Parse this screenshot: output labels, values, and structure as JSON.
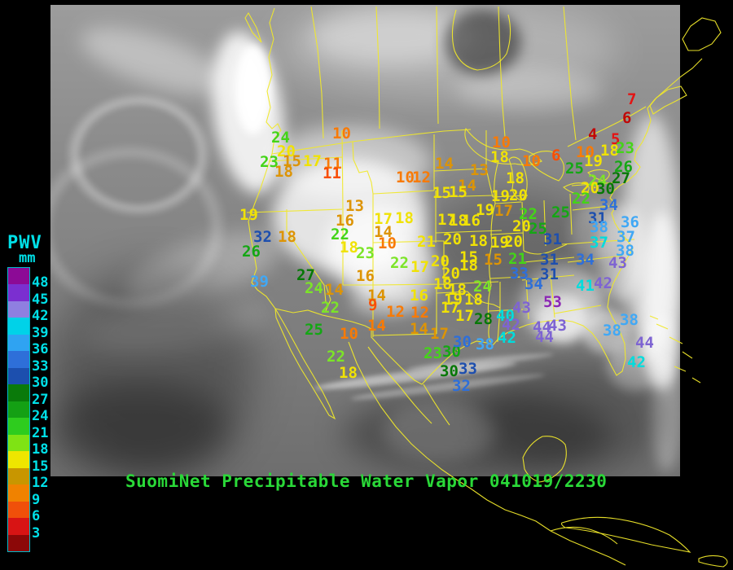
{
  "legend": {
    "title": "PWV",
    "units": "mm",
    "values": [
      "48",
      "45",
      "42",
      "39",
      "36",
      "33",
      "30",
      "27",
      "24",
      "21",
      "18",
      "15",
      "12",
      "9",
      "6",
      "3"
    ],
    "colors": [
      "#8c0a96",
      "#7b2fd0",
      "#8f7fe0",
      "#00d2e8",
      "#2fa3f2",
      "#2e6fd9",
      "#1c4fae",
      "#0a7a0a",
      "#14a014",
      "#2ecc1e",
      "#7fe314",
      "#eee600",
      "#c89600",
      "#f08200",
      "#f0500a",
      "#d81414",
      "#8c0808"
    ]
  },
  "footer": {
    "title": "SuomiNet Precipitable Water Vapor 041019/2230"
  },
  "map": {
    "outline_color": "#f0e82a",
    "background": "#000000"
  },
  "palette": {
    "YE": "#f0e205",
    "AM": "#dd9405",
    "OR": "#f87a05",
    "O2": "#f84e05",
    "RE": "#e41414",
    "R2": "#c00808",
    "G2": "#44d418",
    "G3": "#7ce428",
    "GR": "#14a714",
    "DG": "#077807",
    "DB": "#1e4fae",
    "BL": "#2e6fd9",
    "LB": "#41a8f5",
    "CY": "#00dcdc",
    "PU": "#7e64d2",
    "MA": "#8c28b4"
  },
  "stations": [
    [
      "24",
      333,
      162,
      "G2"
    ],
    [
      "10",
      408,
      157,
      "OR"
    ],
    [
      "20",
      340,
      179,
      "YE"
    ],
    [
      "23",
      319,
      192,
      "G2"
    ],
    [
      "15",
      347,
      191,
      "AM"
    ],
    [
      "17",
      372,
      191,
      "YE"
    ],
    [
      "11",
      397,
      194,
      "OR"
    ],
    [
      "11",
      396,
      206,
      "O2"
    ],
    [
      "18",
      337,
      204,
      "AM"
    ],
    [
      "19",
      294,
      257,
      "YE"
    ],
    [
      "32",
      311,
      284,
      "DB"
    ],
    [
      "18",
      341,
      284,
      "AM"
    ],
    [
      "26",
      297,
      302,
      "GR"
    ],
    [
      "39",
      307,
      339,
      "LB"
    ],
    [
      "10",
      604,
      168,
      "OR"
    ],
    [
      "18",
      602,
      186,
      "YE"
    ],
    [
      "10",
      641,
      191,
      "OR"
    ],
    [
      "6",
      677,
      184,
      "O2"
    ],
    [
      "10",
      707,
      180,
      "OR"
    ],
    [
      "18",
      737,
      178,
      "YE"
    ],
    [
      "14",
      534,
      194,
      "AM"
    ],
    [
      "13",
      577,
      202,
      "AM"
    ],
    [
      "18",
      621,
      212,
      "YE"
    ],
    [
      "14",
      562,
      221,
      "AM"
    ],
    [
      "10",
      486,
      211,
      "OR"
    ],
    [
      "12",
      506,
      211,
      "OR"
    ],
    [
      "15",
      531,
      230,
      "YE"
    ],
    [
      "15",
      551,
      229,
      "YE"
    ],
    [
      "7",
      770,
      115,
      "RE"
    ],
    [
      "6",
      764,
      138,
      "R2"
    ],
    [
      "4",
      722,
      158,
      "R2"
    ],
    [
      "5",
      750,
      164,
      "RE"
    ],
    [
      "23",
      756,
      175,
      "G2"
    ],
    [
      "19",
      717,
      191,
      "YE"
    ],
    [
      "25",
      694,
      200,
      "GR"
    ],
    [
      "26",
      754,
      198,
      "GR"
    ],
    [
      "27",
      751,
      212,
      "DG"
    ],
    [
      "24",
      722,
      215,
      "G3"
    ],
    [
      "20",
      713,
      224,
      "YE"
    ],
    [
      "30",
      732,
      225,
      "DG"
    ],
    [
      "22",
      702,
      237,
      "G2"
    ],
    [
      "34",
      736,
      245,
      "BL"
    ],
    [
      "19",
      603,
      234,
      "YE"
    ],
    [
      "20",
      625,
      233,
      "YE"
    ],
    [
      "19",
      584,
      251,
      "YE"
    ],
    [
      "17",
      607,
      252,
      "AM"
    ],
    [
      "22",
      637,
      256,
      "G2"
    ],
    [
      "25",
      677,
      254,
      "GR"
    ],
    [
      "20",
      629,
      271,
      "YE"
    ],
    [
      "25",
      649,
      274,
      "GR"
    ],
    [
      "17",
      459,
      262,
      "YE"
    ],
    [
      "18",
      485,
      261,
      "YE"
    ],
    [
      "17",
      537,
      263,
      "YE"
    ],
    [
      "18",
      551,
      264,
      "YE"
    ],
    [
      "16",
      567,
      264,
      "YE"
    ],
    [
      "16",
      412,
      264,
      "AM"
    ],
    [
      "13",
      424,
      246,
      "AM"
    ],
    [
      "21",
      512,
      290,
      "YE"
    ],
    [
      "20",
      544,
      287,
      "YE"
    ],
    [
      "18",
      576,
      289,
      "YE"
    ],
    [
      "19",
      602,
      291,
      "YE"
    ],
    [
      "20",
      619,
      290,
      "YE"
    ],
    [
      "14",
      459,
      278,
      "AM"
    ],
    [
      "10",
      464,
      292,
      "OR"
    ],
    [
      "22",
      406,
      281,
      "G2"
    ],
    [
      "18",
      417,
      297,
      "YE"
    ],
    [
      "23",
      437,
      304,
      "G3"
    ],
    [
      "31",
      722,
      261,
      "DB"
    ],
    [
      "31",
      667,
      287,
      "DB"
    ],
    [
      "31",
      663,
      312,
      "DB"
    ],
    [
      "31",
      663,
      330,
      "DB"
    ],
    [
      "36",
      762,
      266,
      "LB"
    ],
    [
      "38",
      724,
      272,
      "LB"
    ],
    [
      "37",
      724,
      291,
      "CY"
    ],
    [
      "37",
      757,
      284,
      "LB"
    ],
    [
      "38",
      756,
      301,
      "LB"
    ],
    [
      "34",
      707,
      312,
      "BL"
    ],
    [
      "43",
      747,
      316,
      "PU"
    ],
    [
      "41",
      707,
      344,
      "CY"
    ],
    [
      "42",
      729,
      341,
      "PU"
    ],
    [
      "34",
      644,
      342,
      "BL"
    ],
    [
      "53",
      667,
      364,
      "MA"
    ],
    [
      "22",
      479,
      316,
      "G3"
    ],
    [
      "17",
      504,
      321,
      "YE"
    ],
    [
      "20",
      529,
      314,
      "YE"
    ],
    [
      "15",
      564,
      309,
      "YE"
    ],
    [
      "18",
      564,
      319,
      "YE"
    ],
    [
      "15",
      594,
      312,
      "AM"
    ],
    [
      "21",
      624,
      311,
      "G2"
    ],
    [
      "33",
      626,
      329,
      "BL"
    ],
    [
      "27",
      364,
      331,
      "DG"
    ],
    [
      "24",
      374,
      347,
      "G3"
    ],
    [
      "14",
      399,
      349,
      "AM"
    ],
    [
      "16",
      437,
      332,
      "AM"
    ],
    [
      "20",
      542,
      329,
      "YE"
    ],
    [
      "18",
      532,
      342,
      "YE"
    ],
    [
      "18",
      550,
      349,
      "YE"
    ],
    [
      "24",
      581,
      345,
      "G3"
    ],
    [
      "16",
      503,
      356,
      "YE"
    ],
    [
      "19",
      545,
      361,
      "YE"
    ],
    [
      "18",
      570,
      361,
      "YE"
    ],
    [
      "14",
      451,
      356,
      "AM"
    ],
    [
      "9",
      452,
      368,
      "O2"
    ],
    [
      "17",
      541,
      371,
      "YE"
    ],
    [
      "12",
      474,
      376,
      "OR"
    ],
    [
      "12",
      504,
      377,
      "OR"
    ],
    [
      "17",
      559,
      381,
      "YE"
    ],
    [
      "28",
      582,
      385,
      "DG"
    ],
    [
      "43",
      629,
      371,
      "PU"
    ],
    [
      "40",
      609,
      381,
      "CY"
    ],
    [
      "42",
      616,
      392,
      "PU"
    ],
    [
      "44",
      654,
      395,
      "PU"
    ],
    [
      "43",
      673,
      393,
      "PU"
    ],
    [
      "44",
      657,
      407,
      "PU"
    ],
    [
      "42",
      611,
      408,
      "CY"
    ],
    [
      "22",
      394,
      371,
      "G3"
    ],
    [
      "25",
      374,
      398,
      "GR"
    ],
    [
      "10",
      417,
      403,
      "OR"
    ],
    [
      "14",
      451,
      393,
      "OR"
    ],
    [
      "14",
      503,
      397,
      "AM"
    ],
    [
      "17",
      528,
      403,
      "AM"
    ],
    [
      "22",
      401,
      431,
      "G3"
    ],
    [
      "18",
      416,
      451,
      "YE"
    ],
    [
      "23",
      520,
      427,
      "G2"
    ],
    [
      "30",
      543,
      425,
      "GR"
    ],
    [
      "30",
      556,
      413,
      "BL"
    ],
    [
      "38",
      584,
      416,
      "LB"
    ],
    [
      "30",
      540,
      449,
      "DG"
    ],
    [
      "33",
      563,
      446,
      "DB"
    ],
    [
      "32",
      555,
      467,
      "BL"
    ],
    [
      "38",
      761,
      386,
      "LB"
    ],
    [
      "38",
      740,
      399,
      "LB"
    ],
    [
      "44",
      780,
      414,
      "PU"
    ],
    [
      "42",
      770,
      438,
      "CY"
    ]
  ]
}
